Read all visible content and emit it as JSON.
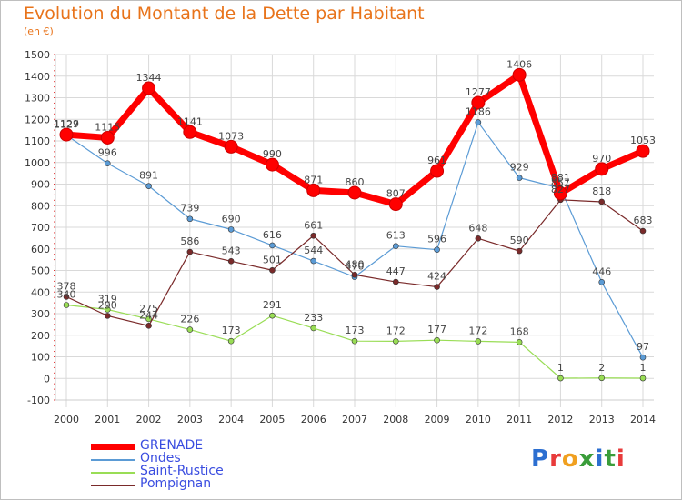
{
  "header": {
    "title": "Evolution du Montant de la Dette par Habitant",
    "subtitle": "(en €)"
  },
  "brand": {
    "logo_text": "Proxiti"
  },
  "chart_data": {
    "type": "line",
    "x": [
      "2000",
      "2001",
      "2002",
      "2003",
      "2004",
      "2005",
      "2006",
      "2007",
      "2008",
      "2009",
      "2010",
      "2011",
      "2012",
      "2013",
      "2014"
    ],
    "ylim": [
      -100,
      1500
    ],
    "yticks": [
      -100,
      0,
      100,
      200,
      300,
      400,
      500,
      600,
      700,
      800,
      900,
      1000,
      1100,
      1200,
      1300,
      1400,
      1500
    ],
    "grid": true,
    "legend_placement": "bottom-left",
    "series": [
      {
        "name": "GRENADE",
        "color": "#ff0000",
        "width": 7,
        "marker": 7,
        "values": [
          1129,
          1115,
          1344,
          1141,
          1073,
          990,
          871,
          860,
          807,
          961,
          1277,
          1406,
          857,
          970,
          1053
        ],
        "labels": [
          "1129",
          "1115",
          "1344",
          "1141",
          "1073",
          "990",
          "871",
          "860",
          "807",
          "961",
          "1277",
          "1406",
          "857",
          "970",
          "1053"
        ]
      },
      {
        "name": "Ondes",
        "color": "#5b9bd5",
        "width": 1.2,
        "marker": 3,
        "values": [
          1127,
          996,
          891,
          739,
          690,
          616,
          544,
          470,
          613,
          596,
          1186,
          929,
          881,
          446,
          97
        ],
        "labels": [
          "1127",
          "996",
          "891",
          "739",
          "690",
          "616",
          "544",
          "470",
          "613",
          "596",
          "1186",
          "929",
          "881",
          "446",
          "97"
        ]
      },
      {
        "name": "Saint-Rustice",
        "color": "#99dd55",
        "width": 1.2,
        "marker": 3,
        "values": [
          340,
          319,
          275,
          226,
          173,
          291,
          233,
          173,
          172,
          177,
          172,
          168,
          1,
          2,
          1
        ],
        "labels": [
          "340",
          "319",
          "275",
          "226",
          "173",
          "291",
          "233",
          "173",
          "172",
          "177",
          "172",
          "168",
          "1",
          "2",
          "1"
        ]
      },
      {
        "name": "Pompignan",
        "color": "#7a2a2a",
        "width": 1.2,
        "marker": 3,
        "values": [
          378,
          290,
          244,
          586,
          543,
          501,
          661,
          480,
          447,
          424,
          648,
          590,
          827,
          818,
          683
        ],
        "labels": [
          "378",
          "290",
          "244",
          "586",
          "543",
          "501",
          "661",
          "480",
          "447",
          "424",
          "648",
          "590",
          "827",
          "818",
          "683"
        ]
      }
    ]
  }
}
